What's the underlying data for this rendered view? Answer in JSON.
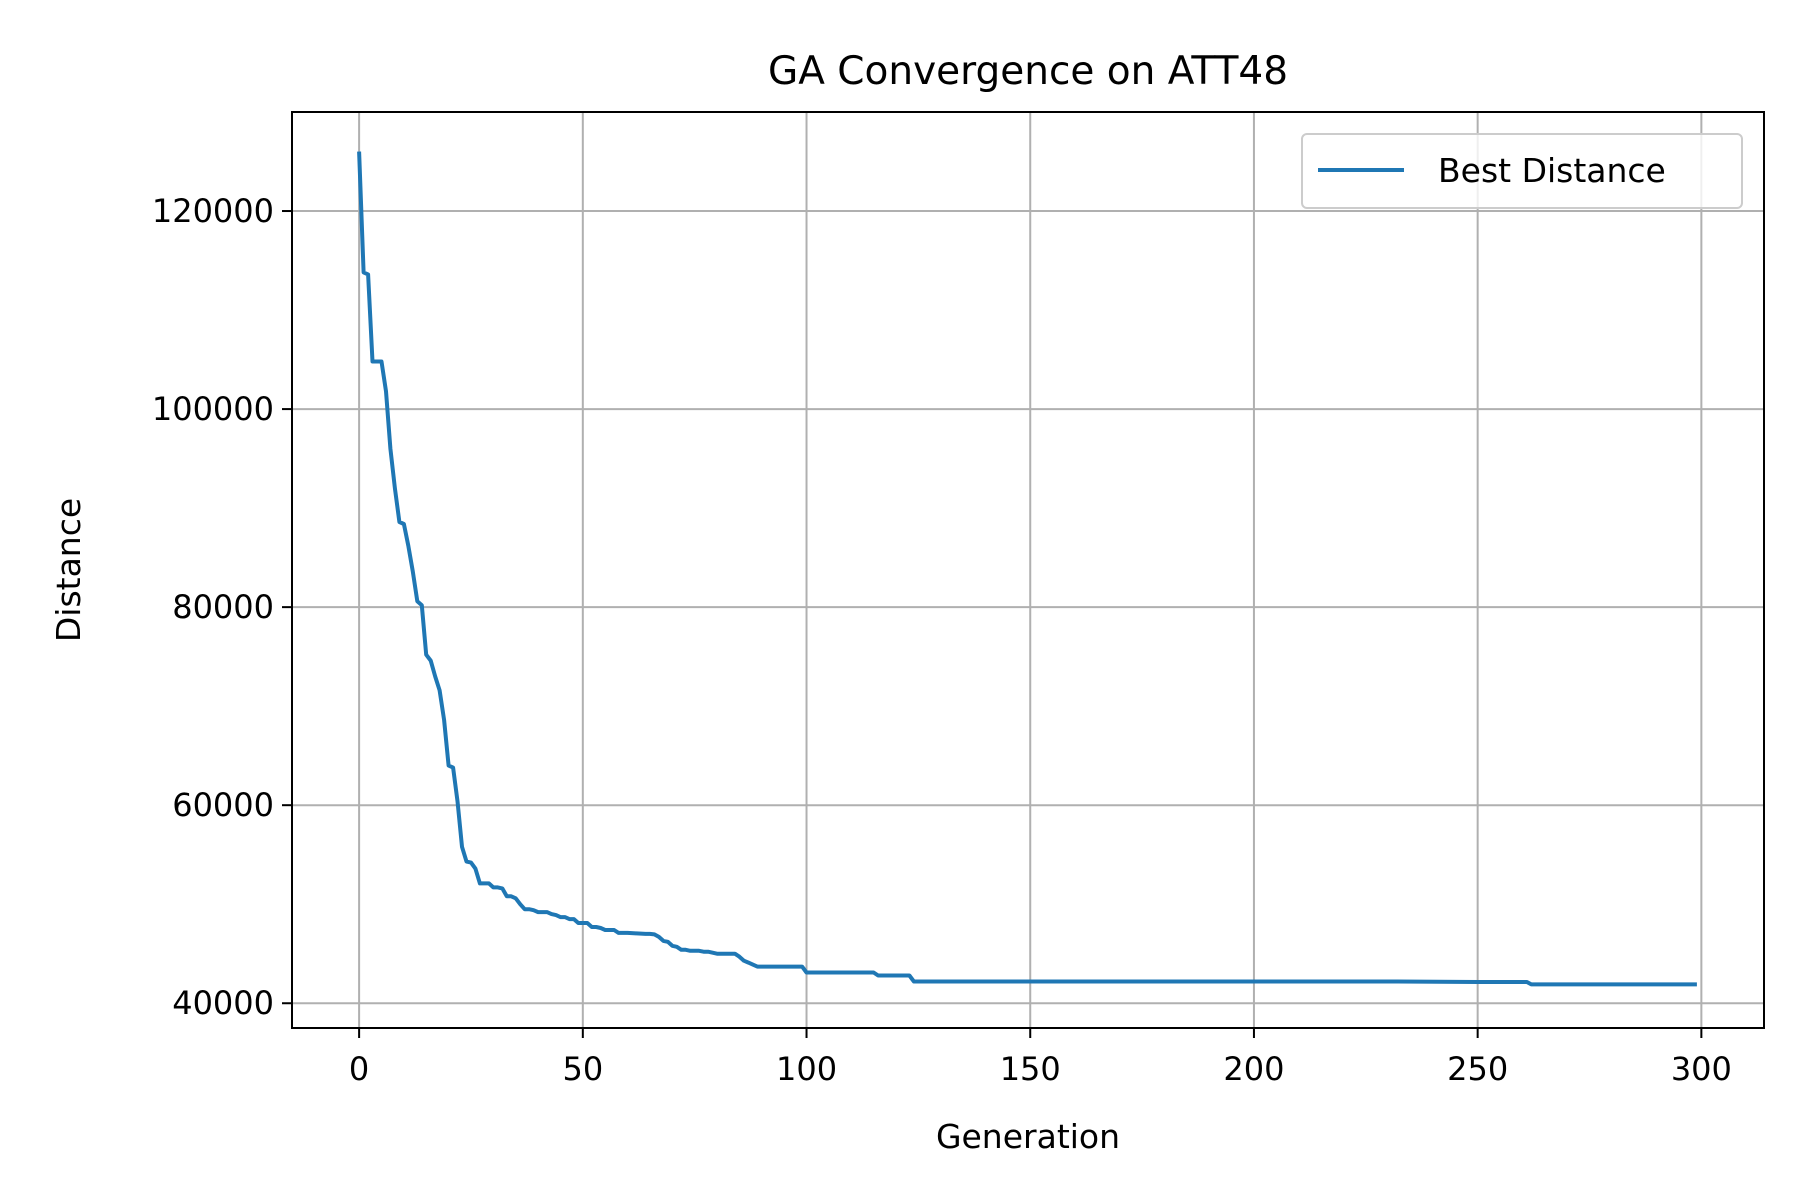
{
  "chart_data": {
    "type": "line",
    "title": "GA Convergence on ATT48",
    "xlabel": "Generation",
    "ylabel": "Distance",
    "xlim": [
      -15,
      314
    ],
    "ylim": [
      37500,
      130000
    ],
    "xticks": [
      0,
      50,
      100,
      150,
      200,
      250,
      300
    ],
    "yticks": [
      40000,
      60000,
      80000,
      100000,
      120000
    ],
    "grid": true,
    "legend_position": "top-right",
    "series": [
      {
        "name": "Best Distance",
        "color": "#1f77b4",
        "x": [
          0,
          1,
          2,
          3,
          4,
          5,
          6,
          7,
          8,
          9,
          10,
          11,
          12,
          13,
          14,
          15,
          16,
          17,
          18,
          19,
          20,
          21,
          22,
          23,
          24,
          25,
          26,
          27,
          28,
          29,
          30,
          31,
          32,
          33,
          34,
          35,
          36,
          37,
          38,
          39,
          40,
          41,
          42,
          43,
          44,
          45,
          46,
          47,
          48,
          49,
          50,
          51,
          52,
          53,
          54,
          55,
          56,
          57,
          58,
          59,
          60,
          62,
          64,
          65,
          66,
          67,
          68,
          69,
          70,
          71,
          72,
          73,
          74,
          75,
          76,
          77,
          78,
          79,
          80,
          82,
          84,
          85,
          86,
          87,
          88,
          89,
          90,
          95,
          98,
          99,
          100,
          110,
          115,
          116,
          120,
          123,
          124,
          150,
          200,
          232,
          250,
          261,
          262,
          299
        ],
        "y": [
          126000,
          113800,
          113600,
          104800,
          104800,
          104800,
          101800,
          96000,
          92000,
          88600,
          88400,
          86200,
          83600,
          80600,
          80200,
          75200,
          74600,
          73000,
          71600,
          68600,
          64000,
          63800,
          60400,
          55800,
          54300,
          54200,
          53600,
          52100,
          52100,
          52100,
          51700,
          51700,
          51600,
          50800,
          50800,
          50600,
          50000,
          49500,
          49500,
          49400,
          49200,
          49200,
          49200,
          49000,
          48900,
          48700,
          48700,
          48500,
          48500,
          48100,
          48100,
          48100,
          47700,
          47700,
          47600,
          47400,
          47400,
          47400,
          47100,
          47100,
          47100,
          47050,
          47000,
          47000,
          46950,
          46700,
          46300,
          46200,
          45800,
          45700,
          45400,
          45400,
          45300,
          45300,
          45300,
          45200,
          45200,
          45100,
          45000,
          45000,
          45000,
          44700,
          44300,
          44100,
          43900,
          43700,
          43700,
          43700,
          43700,
          43700,
          43100,
          43100,
          43100,
          42800,
          42800,
          42800,
          42200,
          42200,
          42200,
          42200,
          42150,
          42150,
          41900,
          41900
        ]
      }
    ]
  }
}
